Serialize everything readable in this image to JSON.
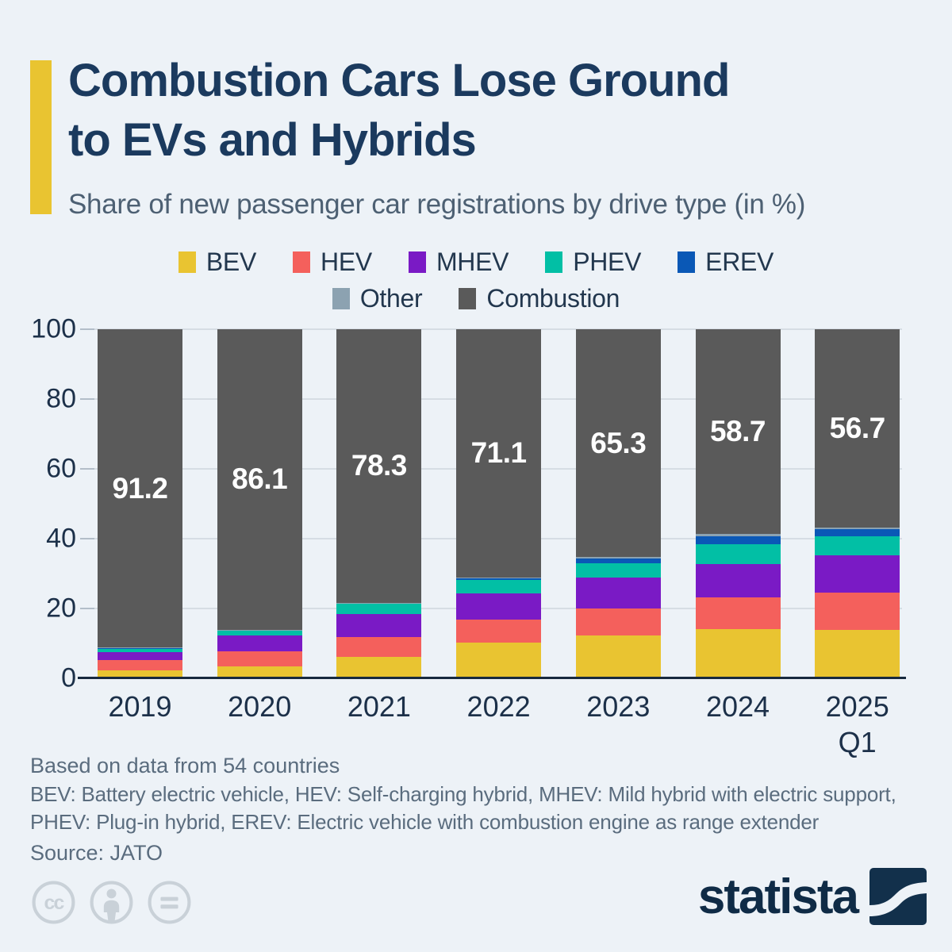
{
  "page": {
    "title": "Combustion Cars Lose Ground\nto EVs and Hybrids",
    "subtitle": "Share of new passenger car registrations by drive type (in %)"
  },
  "colors": {
    "background": "#edf2f7",
    "accent_yellow": "#e9c431",
    "title_navy": "#1b3a5e",
    "subtitle_gray": "#4d6073",
    "grid_line": "#d6dde4",
    "axis_line": "#17293e",
    "bar_value_label": "#ffffff",
    "footer_gray": "#5a6c7e",
    "cc_icon_gray": "#c9d1d8",
    "logo_navy": "#0f2b46"
  },
  "chart_data": {
    "type": "bar",
    "stacked": true,
    "categories": [
      "2019",
      "2020",
      "2021",
      "2022",
      "2023",
      "2024",
      "2025 Q1"
    ],
    "series": [
      {
        "name": "BEV",
        "color": "#e9c431",
        "values": [
          2.3,
          3.5,
          6.1,
          10.2,
          12.2,
          14.0,
          13.8
        ]
      },
      {
        "name": "HEV",
        "color": "#f4605c",
        "values": [
          3.0,
          4.3,
          5.8,
          6.7,
          7.7,
          9.2,
          10.7
        ]
      },
      {
        "name": "MHEV",
        "color": "#7a1ac5",
        "values": [
          2.3,
          4.4,
          6.6,
          7.4,
          8.9,
          9.5,
          10.8
        ]
      },
      {
        "name": "PHEV",
        "color": "#02bfa5",
        "values": [
          0.9,
          1.5,
          2.9,
          4.0,
          4.2,
          5.8,
          5.5
        ]
      },
      {
        "name": "EREV",
        "color": "#0a58b6",
        "values": [
          0.1,
          0.1,
          0.1,
          0.3,
          1.4,
          2.3,
          2.0
        ]
      },
      {
        "name": "Other",
        "color": "#8ca2b1",
        "values": [
          0.2,
          0.1,
          0.2,
          0.3,
          0.3,
          0.5,
          0.5
        ]
      },
      {
        "name": "Combustion",
        "color": "#5a5a5a",
        "values": [
          91.2,
          86.1,
          78.3,
          71.1,
          65.3,
          58.7,
          56.7
        ]
      }
    ],
    "labeled_series": "Combustion",
    "shown_value_labels": [
      "91.2",
      "86.1",
      "78.3",
      "71.1",
      "65.3",
      "58.7",
      "56.7"
    ],
    "ylim": [
      0,
      100
    ],
    "yticks": [
      0,
      20,
      40,
      60,
      80,
      100
    ],
    "grid": true,
    "legend_position": "top",
    "legend_rows": [
      [
        "BEV",
        "HEV",
        "MHEV",
        "PHEV",
        "EREV"
      ],
      [
        "Other",
        "Combustion"
      ]
    ]
  },
  "footer": {
    "note_line1": "Based on data from 54 countries",
    "note_line2": "BEV: Battery electric vehicle, HEV: Self-charging hybrid, MHEV: Mild hybrid with electric support,",
    "note_line3": "PHEV: Plug-in hybrid, EREV: Electric vehicle with combustion engine as range extender",
    "source": "Source: JATO"
  },
  "branding": {
    "logo_text": "statista",
    "license_icons": [
      "creative-commons",
      "attribution",
      "no-derivatives"
    ]
  }
}
